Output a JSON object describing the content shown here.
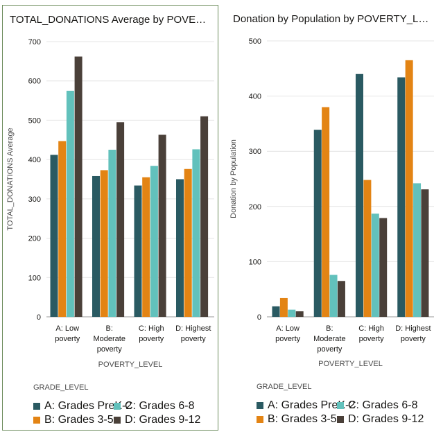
{
  "colors": {
    "A": "#2a5a62",
    "B": "#e38414",
    "C": "#62c1bc",
    "D": "#4a4039"
  },
  "legend": {
    "title": "GRADE_LEVEL",
    "items": [
      {
        "key": "A",
        "label": "A: Grades PreK-2"
      },
      {
        "key": "C",
        "label": "C: Grades 6-8"
      },
      {
        "key": "B",
        "label": "B: Grades 3-5"
      },
      {
        "key": "D",
        "label": "D: Grades 9-12"
      }
    ]
  },
  "chart_data": [
    {
      "type": "bar",
      "title": "TOTAL_DONATIONS Average by POVERTY…",
      "xlabel": "POVERTY_LEVEL",
      "ylabel": "TOTAL_DONATIONS Average",
      "ylim": [
        0,
        700
      ],
      "yticks": [
        "0",
        "100",
        "200",
        "300",
        "400",
        "500",
        "600",
        "700"
      ],
      "categories": [
        [
          "A: Low",
          "poverty"
        ],
        [
          "B:",
          "Moderate",
          "poverty"
        ],
        [
          "C: High",
          "poverty"
        ],
        [
          "D: Highest",
          "poverty"
        ]
      ],
      "series": [
        {
          "key": "A",
          "name": "A: Grades PreK-2",
          "values": [
            412,
            358,
            334,
            350
          ]
        },
        {
          "key": "B",
          "name": "B: Grades 3-5",
          "values": [
            447,
            373,
            355,
            376
          ]
        },
        {
          "key": "C",
          "name": "C: Grades 6-8",
          "values": [
            575,
            425,
            384,
            426
          ]
        },
        {
          "key": "D",
          "name": "D: Grades 9-12",
          "values": [
            662,
            495,
            463,
            510
          ]
        }
      ]
    },
    {
      "type": "bar",
      "title": "Donation by Population by POVERTY_LEV…",
      "xlabel": "POVERTY_LEVEL",
      "ylabel": "Donation by Population",
      "ylim": [
        0,
        500
      ],
      "yticks": [
        "0",
        "100",
        "200",
        "300",
        "400",
        "500"
      ],
      "categories": [
        [
          "A: Low",
          "poverty"
        ],
        [
          "B:",
          "Moderate",
          "poverty"
        ],
        [
          "C: High",
          "poverty"
        ],
        [
          "D: Highest",
          "poverty"
        ]
      ],
      "series": [
        {
          "key": "A",
          "name": "A: Grades PreK-2",
          "values": [
            19,
            339,
            440,
            434
          ]
        },
        {
          "key": "B",
          "name": "B: Grades 3-5",
          "values": [
            34,
            380,
            248,
            465
          ]
        },
        {
          "key": "C",
          "name": "C: Grades 6-8",
          "values": [
            13,
            76,
            187,
            242
          ]
        },
        {
          "key": "D",
          "name": "D: Grades 9-12",
          "values": [
            10,
            65,
            179,
            231
          ]
        }
      ]
    }
  ]
}
